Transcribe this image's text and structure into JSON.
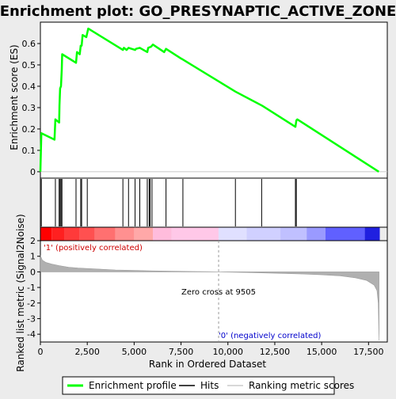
{
  "chart_data": {
    "type": "line",
    "title": "Enrichment plot: GO_PRESYNAPTIC_ACTIVE_ZONE",
    "top_panel": {
      "ylabel": "Enrichment score (ES)",
      "ylim": [
        -0.03,
        0.7
      ],
      "yticks": [
        0.0,
        0.1,
        0.2,
        0.3,
        0.4,
        0.5,
        0.6
      ],
      "series_name": "Enrichment profile",
      "color": "#00ff00",
      "points": [
        [
          0,
          0.0
        ],
        [
          50,
          0.18
        ],
        [
          750,
          0.15
        ],
        [
          800,
          0.245
        ],
        [
          1000,
          0.23
        ],
        [
          1020,
          0.31
        ],
        [
          1050,
          0.39
        ],
        [
          1100,
          0.4
        ],
        [
          1140,
          0.48
        ],
        [
          1160,
          0.55
        ],
        [
          1900,
          0.51
        ],
        [
          1950,
          0.56
        ],
        [
          2100,
          0.55
        ],
        [
          2150,
          0.59
        ],
        [
          2200,
          0.59
        ],
        [
          2250,
          0.64
        ],
        [
          2450,
          0.63
        ],
        [
          2550,
          0.67
        ],
        [
          4400,
          0.57
        ],
        [
          4450,
          0.58
        ],
        [
          4600,
          0.57
        ],
        [
          4700,
          0.58
        ],
        [
          5050,
          0.57
        ],
        [
          5100,
          0.575
        ],
        [
          5300,
          0.58
        ],
        [
          5700,
          0.56
        ],
        [
          5750,
          0.58
        ],
        [
          5900,
          0.585
        ],
        [
          6000,
          0.595
        ],
        [
          6600,
          0.56
        ],
        [
          6700,
          0.575
        ],
        [
          7500,
          0.53
        ],
        [
          7600,
          0.525
        ],
        [
          10400,
          0.375
        ],
        [
          11800,
          0.31
        ],
        [
          11900,
          0.305
        ],
        [
          13600,
          0.21
        ],
        [
          13650,
          0.24
        ],
        [
          13700,
          0.245
        ],
        [
          18050,
          0.0
        ]
      ]
    },
    "hits": [
      50,
      800,
      1000,
      1050,
      1100,
      1150,
      1900,
      2150,
      2200,
      2500,
      4400,
      4700,
      5050,
      5300,
      5700,
      5800,
      5850,
      5950,
      6700,
      7600,
      10400,
      11800,
      13600,
      13650
    ],
    "bottom_panel": {
      "ylabel": "Ranked list metric (Signal2Noise)",
      "ylim": [
        -4.5,
        2
      ],
      "yticks": [
        2,
        1,
        0,
        -1,
        -2,
        -3,
        -4
      ],
      "color": "#b0b0b0",
      "curve": [
        [
          0,
          1.05
        ],
        [
          100,
          0.75
        ],
        [
          300,
          0.6
        ],
        [
          600,
          0.5
        ],
        [
          1000,
          0.4
        ],
        [
          1500,
          0.3
        ],
        [
          2000,
          0.25
        ],
        [
          3000,
          0.18
        ],
        [
          4000,
          0.12
        ],
        [
          5000,
          0.09
        ],
        [
          6000,
          0.06
        ],
        [
          7000,
          0.04
        ],
        [
          8000,
          0.025
        ],
        [
          9000,
          0.01
        ],
        [
          9505,
          0.0
        ],
        [
          10000,
          -0.015
        ],
        [
          11000,
          -0.04
        ],
        [
          12000,
          -0.07
        ],
        [
          13000,
          -0.1
        ],
        [
          14000,
          -0.14
        ],
        [
          15000,
          -0.19
        ],
        [
          16000,
          -0.26
        ],
        [
          16800,
          -0.38
        ],
        [
          17400,
          -0.55
        ],
        [
          17800,
          -0.85
        ],
        [
          17950,
          -1.2
        ],
        [
          18020,
          -2.0
        ],
        [
          18060,
          -4.4
        ]
      ],
      "zero_cross_label": "Zero cross at 9505",
      "zero_cross": 9505,
      "pos_label": "'1' (positively correlated)",
      "neg_label": "'0' (negatively correlated)"
    },
    "xlabel": "Rank in Ordered Dataset",
    "xlim": [
      0,
      18500
    ],
    "xticks": [
      0,
      2500,
      5000,
      7500,
      10000,
      12500,
      15000,
      17500
    ],
    "xtick_labels": [
      "0",
      "2,500",
      "5,000",
      "7,500",
      "10,000",
      "12,500",
      "15,000",
      "17,500"
    ],
    "color_bar": [
      {
        "from": 0,
        "to": 600,
        "color": "#ff0000"
      },
      {
        "from": 600,
        "to": 1300,
        "color": "#ff2020"
      },
      {
        "from": 1300,
        "to": 2100,
        "color": "#ff3a3a"
      },
      {
        "from": 2100,
        "to": 2900,
        "color": "#ff5050"
      },
      {
        "from": 2900,
        "to": 4000,
        "color": "#ff7070"
      },
      {
        "from": 4000,
        "to": 5000,
        "color": "#ff9090"
      },
      {
        "from": 5000,
        "to": 6000,
        "color": "#ffa8a8"
      },
      {
        "from": 6000,
        "to": 7000,
        "color": "#ffbcdc"
      },
      {
        "from": 7000,
        "to": 9500,
        "color": "#ffc8e8"
      },
      {
        "from": 9500,
        "to": 11000,
        "color": "#e0e0ff"
      },
      {
        "from": 11000,
        "to": 12800,
        "color": "#d0d0ff"
      },
      {
        "from": 12800,
        "to": 14200,
        "color": "#c0c0ff"
      },
      {
        "from": 14200,
        "to": 15200,
        "color": "#9a9aff"
      },
      {
        "from": 15200,
        "to": 17300,
        "color": "#6060ff"
      },
      {
        "from": 17300,
        "to": 18100,
        "color": "#2020e0"
      }
    ],
    "legend": {
      "placement": "bottom",
      "items": [
        {
          "label": "Enrichment profile",
          "color": "#00ff00"
        },
        {
          "label": "Hits",
          "color": "#000000"
        },
        {
          "label": "Ranking metric scores",
          "color": "#b0b0b0"
        }
      ]
    }
  }
}
